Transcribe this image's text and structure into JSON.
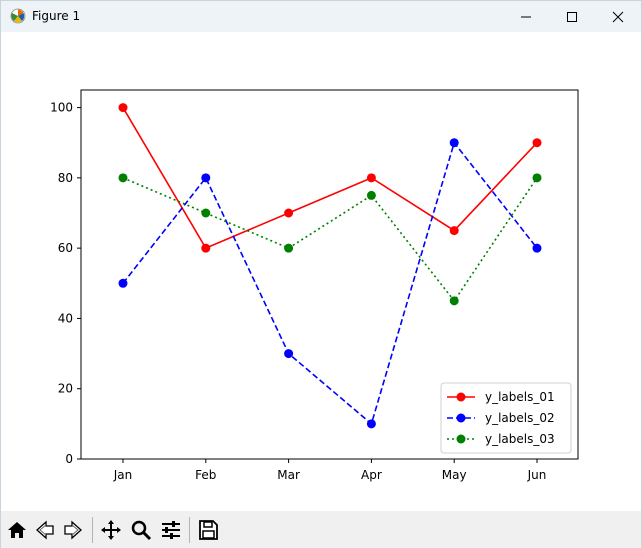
{
  "window": {
    "title": "Figure 1",
    "app_icon": "matplotlib-icon",
    "controls": [
      "minimize-icon",
      "maximize-icon",
      "close-icon"
    ]
  },
  "chart_data": {
    "type": "line",
    "categories": [
      "Jan",
      "Feb",
      "Mar",
      "Apr",
      "May",
      "Jun"
    ],
    "series": [
      {
        "name": "y_labels_01",
        "values": [
          100,
          60,
          70,
          80,
          65,
          90
        ],
        "color": "#ff0000",
        "linestyle": "solid",
        "marker": "circle"
      },
      {
        "name": "y_labels_02",
        "values": [
          50,
          80,
          30,
          10,
          90,
          60
        ],
        "color": "#0000ff",
        "linestyle": "dashed",
        "marker": "circle"
      },
      {
        "name": "y_labels_03",
        "values": [
          80,
          70,
          60,
          75,
          45,
          80
        ],
        "color": "#008000",
        "linestyle": "dotted",
        "marker": "circle"
      }
    ],
    "yticks": [
      0,
      20,
      40,
      60,
      80,
      100
    ],
    "ylim": [
      0,
      105
    ],
    "title": "",
    "xlabel": "",
    "ylabel": "",
    "grid": false,
    "legend_position": "lower-right"
  },
  "toolbar": {
    "buttons": [
      "home-icon",
      "back-icon",
      "forward-icon",
      "pan-icon",
      "zoom-icon",
      "configure-subplots-icon",
      "save-icon"
    ]
  }
}
